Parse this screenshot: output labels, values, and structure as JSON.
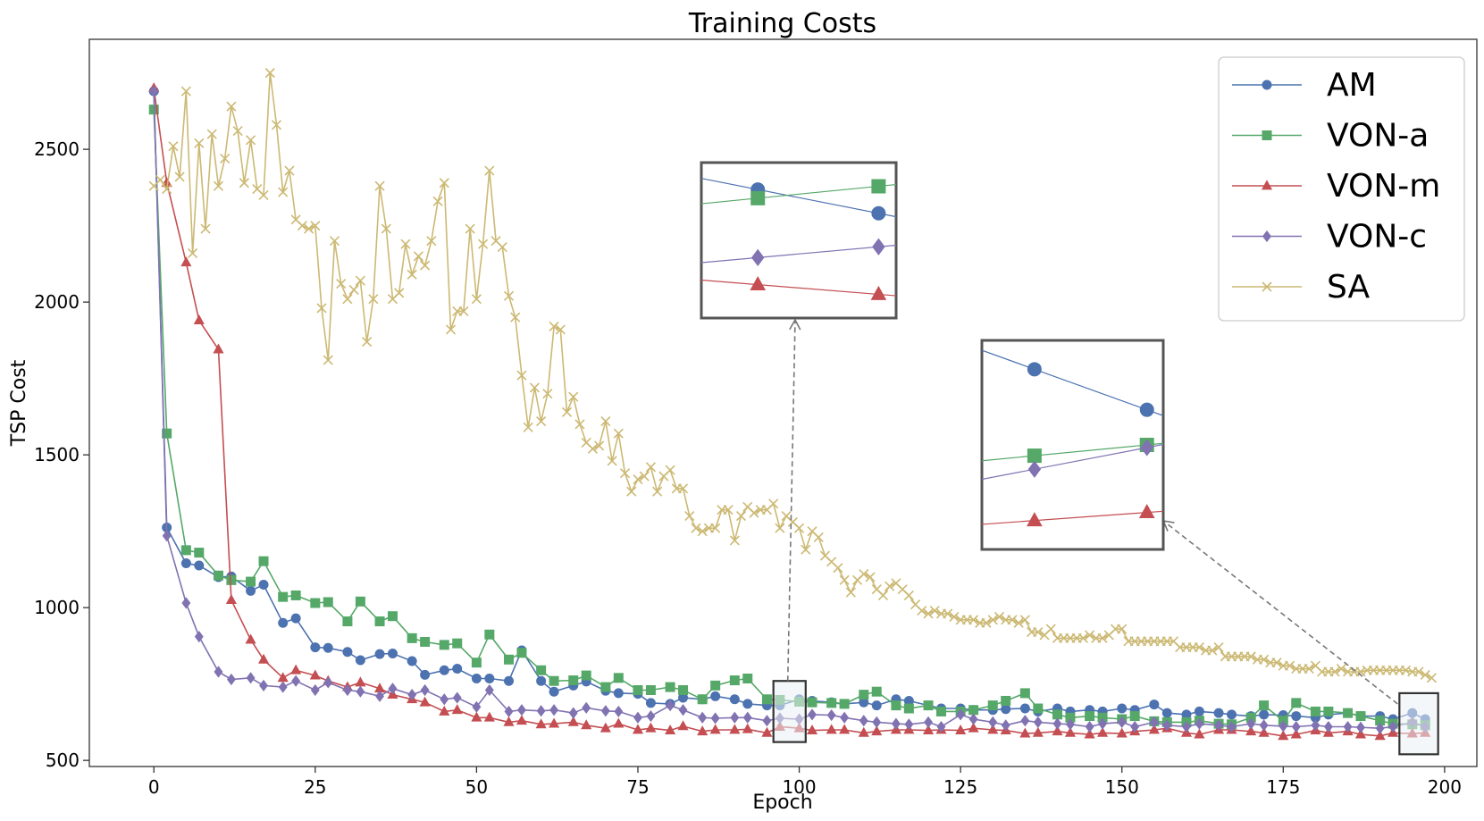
{
  "chart_data": {
    "type": "line",
    "title": "Training Costs",
    "xlabel": "Epoch",
    "ylabel": "TSP Cost",
    "xlim": [
      -10,
      205
    ],
    "ylim": [
      480,
      2860
    ],
    "xticks": [
      0,
      25,
      50,
      75,
      100,
      125,
      150,
      175,
      200
    ],
    "yticks": [
      500,
      1000,
      1500,
      2000,
      2500
    ],
    "grid": false,
    "legend_position": "top-right",
    "series": [
      {
        "name": "AM",
        "color": "#4C72B0",
        "marker": "circle",
        "x": [
          0,
          2,
          5,
          7,
          10,
          12,
          15,
          17,
          20,
          22,
          25,
          27,
          30,
          32,
          35,
          37,
          40,
          42,
          45,
          47,
          50,
          52,
          55,
          57,
          60,
          62,
          65,
          67,
          70,
          72,
          75,
          77,
          80,
          82,
          85,
          87,
          90,
          92,
          95,
          97,
          100,
          102,
          105,
          107,
          110,
          112,
          115,
          117,
          120,
          122,
          125,
          127,
          130,
          132,
          135,
          137,
          140,
          142,
          145,
          147,
          150,
          152,
          155,
          157,
          160,
          162,
          165,
          167,
          170,
          172,
          175,
          177,
          180,
          182,
          185,
          187,
          190,
          192,
          195,
          197
        ],
        "y": [
          2690,
          1262,
          1145,
          1138,
          1100,
          1102,
          1055,
          1075,
          950,
          965,
          870,
          868,
          855,
          828,
          848,
          850,
          825,
          780,
          795,
          800,
          768,
          768,
          760,
          860,
          760,
          725,
          745,
          758,
          728,
          720,
          718,
          688,
          685,
          705,
          700,
          710,
          700,
          685,
          680,
          680,
          700,
          695,
          690,
          685,
          690,
          680,
          700,
          695,
          680,
          670,
          670,
          665,
          665,
          668,
          670,
          660,
          670,
          660,
          665,
          660,
          670,
          665,
          683,
          655,
          650,
          660,
          655,
          650,
          645,
          650,
          648,
          645,
          640,
          650,
          655,
          645,
          645,
          635,
          655,
          635
        ]
      },
      {
        "name": "VON-a",
        "color": "#55A868",
        "marker": "square",
        "x": [
          0,
          2,
          5,
          7,
          10,
          12,
          15,
          17,
          20,
          22,
          25,
          27,
          30,
          32,
          35,
          37,
          40,
          42,
          45,
          47,
          50,
          52,
          55,
          57,
          60,
          62,
          65,
          67,
          70,
          72,
          75,
          77,
          80,
          82,
          85,
          87,
          90,
          92,
          95,
          97,
          100,
          102,
          105,
          107,
          110,
          112,
          115,
          117,
          120,
          122,
          125,
          127,
          130,
          132,
          135,
          137,
          140,
          142,
          145,
          147,
          150,
          152,
          155,
          157,
          160,
          162,
          165,
          167,
          170,
          172,
          175,
          177,
          180,
          182,
          185,
          187,
          190,
          192,
          195,
          197
        ],
        "y": [
          2630,
          1570,
          1188,
          1180,
          1105,
          1090,
          1085,
          1152,
          1035,
          1040,
          1015,
          1018,
          955,
          1020,
          955,
          972,
          900,
          888,
          878,
          883,
          820,
          912,
          830,
          852,
          795,
          760,
          762,
          778,
          740,
          770,
          730,
          730,
          740,
          730,
          700,
          745,
          762,
          768,
          700,
          698,
          692,
          690,
          688,
          685,
          715,
          725,
          680,
          670,
          680,
          660,
          660,
          665,
          680,
          695,
          720,
          670,
          650,
          640,
          645,
          640,
          635,
          645,
          628,
          625,
          625,
          630,
          620,
          618,
          640,
          680,
          630,
          688,
          660,
          660,
          655,
          645,
          630,
          620,
          618,
          615
        ]
      },
      {
        "name": "VON-m",
        "color": "#C44E52",
        "marker": "triangle",
        "x": [
          0,
          2,
          5,
          7,
          10,
          12,
          15,
          17,
          20,
          22,
          25,
          27,
          30,
          32,
          35,
          37,
          40,
          42,
          45,
          47,
          50,
          52,
          55,
          57,
          60,
          62,
          65,
          67,
          70,
          72,
          75,
          77,
          80,
          82,
          85,
          87,
          90,
          92,
          95,
          97,
          100,
          102,
          105,
          107,
          110,
          112,
          115,
          117,
          120,
          122,
          125,
          127,
          130,
          132,
          135,
          137,
          140,
          142,
          145,
          147,
          150,
          152,
          155,
          157,
          160,
          162,
          165,
          167,
          170,
          172,
          175,
          177,
          180,
          182,
          185,
          187,
          190,
          192,
          195,
          197
        ],
        "y": [
          2700,
          2390,
          2130,
          1940,
          1845,
          1025,
          895,
          830,
          770,
          795,
          778,
          760,
          740,
          755,
          735,
          715,
          700,
          690,
          660,
          665,
          640,
          640,
          625,
          630,
          618,
          620,
          625,
          615,
          605,
          620,
          600,
          605,
          598,
          612,
          595,
          600,
          600,
          602,
          590,
          610,
          605,
          598,
          600,
          600,
          590,
          595,
          600,
          600,
          598,
          600,
          598,
          605,
          600,
          598,
          588,
          590,
          595,
          590,
          585,
          590,
          588,
          595,
          600,
          605,
          590,
          585,
          600,
          600,
          595,
          590,
          580,
          585,
          598,
          590,
          595,
          585,
          580,
          590,
          588,
          590
        ]
      },
      {
        "name": "VON-c",
        "color": "#8172B2",
        "marker": "diamond",
        "x": [
          0,
          2,
          5,
          7,
          10,
          12,
          15,
          17,
          20,
          22,
          25,
          27,
          30,
          32,
          35,
          37,
          40,
          42,
          45,
          47,
          50,
          52,
          55,
          57,
          60,
          62,
          65,
          67,
          70,
          72,
          75,
          77,
          80,
          82,
          85,
          87,
          90,
          92,
          95,
          97,
          100,
          102,
          105,
          107,
          110,
          112,
          115,
          117,
          120,
          122,
          125,
          127,
          130,
          132,
          135,
          137,
          140,
          142,
          145,
          147,
          150,
          152,
          155,
          157,
          160,
          162,
          165,
          167,
          170,
          172,
          175,
          177,
          180,
          182,
          185,
          187,
          190,
          192,
          195,
          197
        ],
        "y": [
          2690,
          1235,
          1015,
          905,
          790,
          765,
          770,
          745,
          740,
          760,
          730,
          755,
          730,
          725,
          710,
          735,
          715,
          730,
          700,
          705,
          675,
          730,
          660,
          665,
          662,
          665,
          655,
          672,
          662,
          660,
          640,
          645,
          680,
          665,
          640,
          638,
          640,
          640,
          630,
          638,
          635,
          650,
          648,
          640,
          630,
          625,
          620,
          618,
          625,
          610,
          650,
          635,
          625,
          615,
          630,
          625,
          620,
          618,
          610,
          620,
          625,
          610,
          625,
          615,
          610,
          620,
          615,
          610,
          620,
          615,
          612,
          610,
          615,
          610,
          610,
          608,
          605,
          610,
          625,
          610
        ]
      },
      {
        "name": "SA",
        "color": "#CCB974",
        "marker": "x",
        "x": [
          0,
          1,
          2,
          3,
          4,
          5,
          6,
          7,
          8,
          9,
          10,
          11,
          12,
          13,
          14,
          15,
          16,
          17,
          18,
          19,
          20,
          21,
          22,
          23,
          24,
          25,
          26,
          27,
          28,
          29,
          30,
          31,
          32,
          33,
          34,
          35,
          36,
          37,
          38,
          39,
          40,
          41,
          42,
          43,
          44,
          45,
          46,
          47,
          48,
          49,
          50,
          51,
          52,
          53,
          54,
          55,
          56,
          57,
          58,
          59,
          60,
          61,
          62,
          63,
          64,
          65,
          66,
          67,
          68,
          69,
          70,
          71,
          72,
          73,
          74,
          75,
          76,
          77,
          78,
          79,
          80,
          81,
          82,
          83,
          84,
          85,
          86,
          87,
          88,
          89,
          90,
          91,
          92,
          93,
          94,
          95,
          96,
          97,
          98,
          99,
          100,
          101,
          102,
          103,
          104,
          105,
          106,
          107,
          108,
          109,
          110,
          111,
          112,
          113,
          114,
          115,
          116,
          117,
          118,
          119,
          120,
          121,
          122,
          123,
          124,
          125,
          126,
          127,
          128,
          129,
          130,
          131,
          132,
          133,
          134,
          135,
          136,
          137,
          138,
          139,
          140,
          141,
          142,
          143,
          144,
          145,
          146,
          147,
          148,
          149,
          150,
          151,
          152,
          153,
          154,
          155,
          156,
          157,
          158,
          159,
          160,
          161,
          162,
          163,
          164,
          165,
          166,
          167,
          168,
          169,
          170,
          171,
          172,
          173,
          174,
          175,
          176,
          177,
          178,
          179,
          180,
          181,
          182,
          183,
          184,
          185,
          186,
          187,
          188,
          189,
          190,
          191,
          192,
          193,
          194,
          195,
          196,
          197,
          198
        ],
        "y": [
          2380,
          2400,
          2370,
          2510,
          2410,
          2690,
          2160,
          2520,
          2240,
          2550,
          2380,
          2470,
          2640,
          2560,
          2390,
          2530,
          2370,
          2350,
          2750,
          2580,
          2360,
          2430,
          2270,
          2250,
          2240,
          2250,
          1980,
          1810,
          2200,
          2060,
          2010,
          2040,
          2070,
          1870,
          2010,
          2380,
          2240,
          2010,
          2030,
          2190,
          2090,
          2150,
          2120,
          2200,
          2330,
          2390,
          1910,
          1970,
          1970,
          2240,
          2010,
          2190,
          2430,
          2200,
          2180,
          2020,
          1950,
          1760,
          1590,
          1720,
          1610,
          1700,
          1920,
          1910,
          1640,
          1690,
          1600,
          1540,
          1520,
          1530,
          1610,
          1480,
          1570,
          1440,
          1380,
          1420,
          1430,
          1460,
          1380,
          1430,
          1450,
          1390,
          1390,
          1300,
          1260,
          1250,
          1260,
          1260,
          1320,
          1320,
          1220,
          1300,
          1330,
          1310,
          1320,
          1320,
          1340,
          1260,
          1300,
          1280,
          1260,
          1190,
          1250,
          1230,
          1170,
          1150,
          1130,
          1090,
          1050,
          1090,
          1110,
          1100,
          1060,
          1040,
          1070,
          1080,
          1060,
          1040,
          1010,
          990,
          980,
          990,
          980,
          980,
          970,
          960,
          960,
          960,
          950,
          950,
          960,
          970,
          960,
          960,
          950,
          960,
          920,
          920,
          910,
          930,
          900,
          900,
          900,
          900,
          900,
          910,
          900,
          900,
          910,
          930,
          930,
          890,
          890,
          890,
          890,
          890,
          890,
          890,
          890,
          870,
          870,
          870,
          870,
          860,
          860,
          870,
          840,
          840,
          840,
          840,
          840,
          830,
          830,
          820,
          820,
          810,
          810,
          800,
          800,
          800,
          810,
          790,
          790,
          790,
          800,
          790,
          790,
          790,
          795,
          795,
          795,
          795,
          795,
          795,
          795,
          790,
          790,
          780,
          770
        ]
      }
    ],
    "insets": [
      {
        "source_x_range": [
          96,
          101
        ],
        "source_y_range": [
          560,
          760
        ],
        "points": [
          {
            "series": "AM",
            "values": [
              700,
              678
            ]
          },
          {
            "series": "VON-a",
            "values": [
              692,
              703
            ]
          },
          {
            "series": "VON-m",
            "values": [
              612,
              603
            ]
          },
          {
            "series": "VON-c",
            "values": [
              637,
              647
            ]
          }
        ]
      },
      {
        "source_x_range": [
          193,
          199
        ],
        "source_y_range": [
          520,
          720
        ],
        "points": [
          {
            "series": "AM",
            "values": [
              652,
              637
            ]
          },
          {
            "series": "VON-a",
            "values": [
              620,
              624
            ]
          },
          {
            "series": "VON-m",
            "values": [
              596,
              599
            ]
          },
          {
            "series": "VON-c",
            "values": [
              615,
              623
            ]
          }
        ]
      }
    ]
  }
}
